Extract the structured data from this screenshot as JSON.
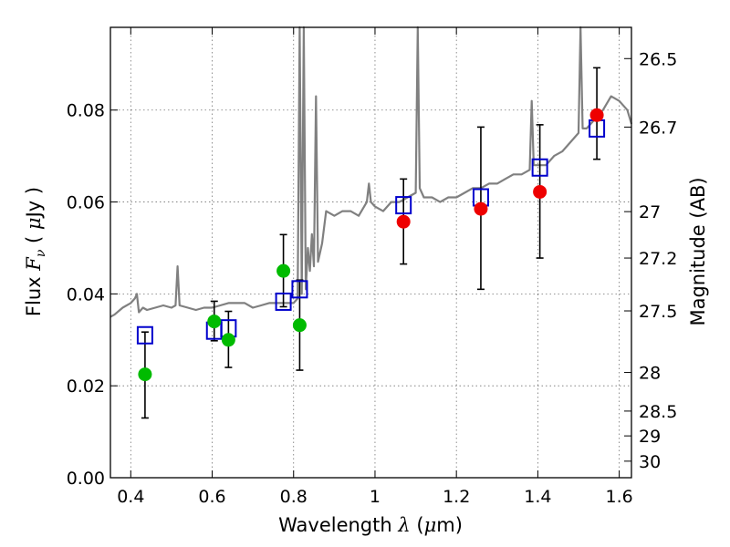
{
  "chart_data": {
    "type": "scatter",
    "title": "",
    "xlabel": "Wavelength",
    "xlabel_symbol": "λ",
    "xlabel_unit_open": "(",
    "xlabel_unit_mu": "μ",
    "xlabel_unit_rest": "m)",
    "ylabel_prefix": "Flux",
    "ylabel_symbol": "F",
    "ylabel_subscript": "ν",
    "ylabel_unit_open": "(",
    "ylabel_unit_mu": "μ",
    "ylabel_unit_rest": "Jy )",
    "y2label": "Magnitude (AB)",
    "xlim": [
      0.35,
      1.63
    ],
    "ylim": [
      0.0,
      0.098
    ],
    "grid": true,
    "legend": "none",
    "xticks": [
      0.4,
      0.6,
      0.8,
      1.0,
      1.2,
      1.4,
      1.6
    ],
    "xtick_labels": [
      "0.4",
      "0.6",
      "0.8",
      "1",
      "1.2",
      "1.4",
      "1.6"
    ],
    "yticks": [
      0.0,
      0.02,
      0.04,
      0.06,
      0.08
    ],
    "ytick_labels": [
      "0.00",
      "0.02",
      "0.04",
      "0.06",
      "0.08"
    ],
    "y2ticks": [
      {
        "label": "26.5",
        "flux": 0.0912
      },
      {
        "label": "26.7",
        "flux": 0.0763
      },
      {
        "label": "27",
        "flux": 0.0579
      },
      {
        "label": "27.2",
        "flux": 0.0478
      },
      {
        "label": "27.5",
        "flux": 0.0363
      },
      {
        "label": "28",
        "flux": 0.0229
      },
      {
        "label": "28.5",
        "flux": 0.0145
      },
      {
        "label": "29",
        "flux": 0.0091
      },
      {
        "label": "30",
        "flux": 0.0036
      }
    ],
    "colors": {
      "model_spectrum": "#808080",
      "green_points": "#00bb00",
      "red_points": "#ee0000",
      "model_squares": "#0000cc",
      "errorbar": "#000000",
      "grid": "#999999"
    },
    "series": [
      {
        "kind": "line",
        "x": [
          0.35,
          0.36,
          0.38,
          0.4,
          0.41,
          0.415,
          0.42,
          0.43,
          0.44,
          0.46,
          0.48,
          0.5,
          0.51,
          0.515,
          0.52,
          0.54,
          0.56,
          0.58,
          0.6,
          0.62,
          0.64,
          0.66,
          0.68,
          0.7,
          0.72,
          0.74,
          0.76,
          0.78,
          0.8,
          0.81,
          0.815,
          0.82,
          0.825,
          0.83,
          0.835,
          0.84,
          0.845,
          0.85,
          0.855,
          0.86,
          0.87,
          0.88,
          0.9,
          0.92,
          0.94,
          0.96,
          0.98,
          0.985,
          0.99,
          1.0,
          1.02,
          1.04,
          1.06,
          1.08,
          1.1,
          1.105,
          1.11,
          1.12,
          1.14,
          1.16,
          1.18,
          1.2,
          1.22,
          1.24,
          1.26,
          1.28,
          1.3,
          1.32,
          1.34,
          1.36,
          1.38,
          1.385,
          1.39,
          1.4,
          1.42,
          1.44,
          1.46,
          1.48,
          1.5,
          1.505,
          1.51,
          1.52,
          1.54,
          1.56,
          1.58,
          1.6,
          1.62,
          1.63
        ],
        "y": [
          0.035,
          0.0355,
          0.037,
          0.038,
          0.039,
          0.04,
          0.036,
          0.037,
          0.0365,
          0.037,
          0.0375,
          0.037,
          0.0375,
          0.046,
          0.0375,
          0.037,
          0.0365,
          0.037,
          0.037,
          0.0375,
          0.038,
          0.038,
          0.038,
          0.037,
          0.0375,
          0.038,
          0.038,
          0.038,
          0.038,
          0.039,
          0.098,
          0.04,
          0.098,
          0.041,
          0.05,
          0.045,
          0.053,
          0.046,
          0.083,
          0.047,
          0.051,
          0.058,
          0.057,
          0.058,
          0.058,
          0.057,
          0.06,
          0.064,
          0.06,
          0.059,
          0.058,
          0.06,
          0.06,
          0.061,
          0.062,
          0.098,
          0.063,
          0.061,
          0.061,
          0.06,
          0.061,
          0.061,
          0.062,
          0.063,
          0.063,
          0.064,
          0.064,
          0.065,
          0.066,
          0.066,
          0.067,
          0.082,
          0.068,
          0.068,
          0.068,
          0.07,
          0.071,
          0.073,
          0.075,
          0.098,
          0.076,
          0.076,
          0.078,
          0.08,
          0.083,
          0.082,
          0.08,
          0.077
        ]
      },
      {
        "kind": "points",
        "color_key": "green_points",
        "x": [
          0.435,
          0.605,
          0.64,
          0.775,
          0.815
        ],
        "y": [
          0.0225,
          0.034,
          0.03,
          0.045,
          0.0332
        ],
        "yerr_low": [
          0.013,
          0.0298,
          0.024,
          0.0372,
          0.0234
        ],
        "yerr_high": [
          0.0317,
          0.0384,
          0.0362,
          0.0529,
          0.043
        ]
      },
      {
        "kind": "points",
        "color_key": "red_points",
        "x": [
          1.07,
          1.26,
          1.405,
          1.545
        ],
        "y": [
          0.0557,
          0.0585,
          0.0622,
          0.0789
        ],
        "yerr_low": [
          0.0465,
          0.041,
          0.0478,
          0.0693
        ],
        "yerr_high": [
          0.065,
          0.0763,
          0.0768,
          0.0892
        ]
      },
      {
        "kind": "squares",
        "color_key": "model_squares",
        "x": [
          0.435,
          0.605,
          0.64,
          0.775,
          0.815,
          1.07,
          1.26,
          1.405,
          1.545
        ],
        "y": [
          0.031,
          0.032,
          0.0325,
          0.0383,
          0.041,
          0.0593,
          0.061,
          0.0675,
          0.076
        ]
      }
    ]
  }
}
